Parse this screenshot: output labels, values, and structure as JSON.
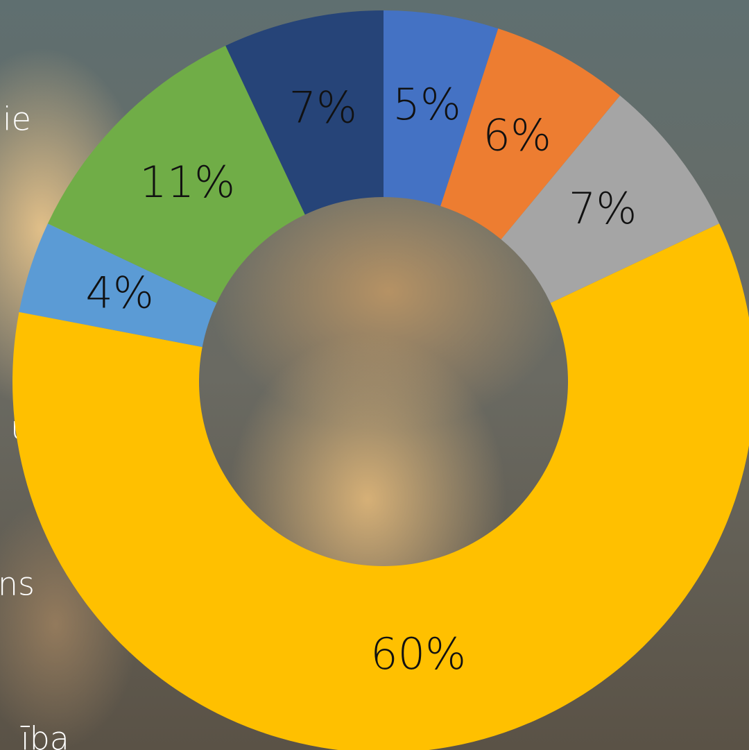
{
  "background_texts": [
    "ie",
    "ums",
    "ns",
    "ība"
  ],
  "chart_data": {
    "type": "donut",
    "values": [
      5,
      6,
      7,
      60,
      4,
      11,
      7
    ],
    "value_labels": [
      "5%",
      "6%",
      "7%",
      "60%",
      "4%",
      "11%",
      "7%"
    ],
    "colors": [
      "#4472c4",
      "#ed7d31",
      "#a5a5a5",
      "#ffc000",
      "#5b9bd5",
      "#70ad47",
      "#264478"
    ]
  }
}
